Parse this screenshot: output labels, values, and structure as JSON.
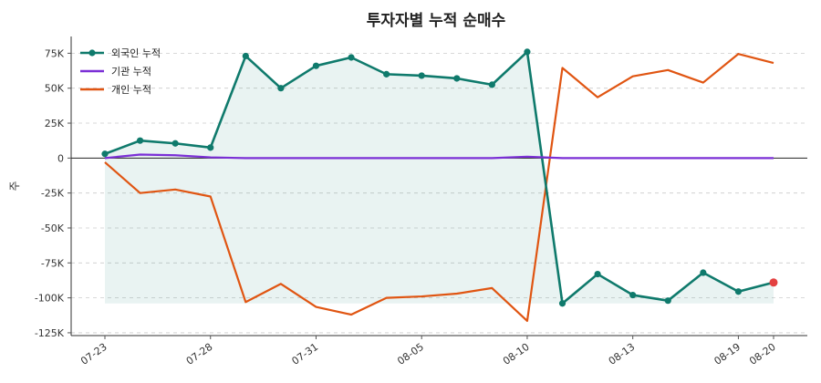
{
  "chart_data": {
    "type": "line",
    "title": "투자자별 누적 순매수",
    "ylabel": "주",
    "xlabel": "",
    "ylim": [
      -127000,
      87000
    ],
    "yticks": [
      75000,
      50000,
      25000,
      0,
      -25000,
      -50000,
      -75000,
      -100000,
      -125000
    ],
    "ytick_labels": [
      "75K",
      "50K",
      "25K",
      "0",
      "-25K",
      "-50K",
      "-75K",
      "-100K",
      "-125K"
    ],
    "grid": true,
    "legend_position": "top-left",
    "dates": [
      "07-23",
      "07-24",
      "07-25",
      "07-28",
      "07-29",
      "07-30",
      "07-31",
      "08-01",
      "08-04",
      "08-05",
      "08-06",
      "08-07",
      "08-10",
      "08-11",
      "08-12",
      "08-13",
      "08-14",
      "08-18",
      "08-19",
      "08-20"
    ],
    "xticks": [
      "07-23",
      "07-28",
      "07-31",
      "08-05",
      "08-10",
      "08-13",
      "08-19",
      "08-20"
    ],
    "series": [
      {
        "name": "외국인 누적",
        "color": "#0f7a6c",
        "markers": true,
        "fill": true,
        "values": [
          3000,
          12500,
          10500,
          7500,
          73000,
          50000,
          66000,
          72000,
          60000,
          59000,
          57000,
          52500,
          76000,
          -104000,
          -83000,
          -98000,
          -102000,
          -82000,
          -95500,
          -89000
        ]
      },
      {
        "name": "기관 누적",
        "color": "#7b2fd6",
        "markers": false,
        "fill": false,
        "values": [
          0,
          2500,
          2000,
          500,
          0,
          0,
          0,
          0,
          0,
          0,
          0,
          0,
          1000,
          0,
          0,
          0,
          0,
          0,
          0,
          0
        ]
      },
      {
        "name": "개인 누적",
        "color": "#e05512",
        "markers": false,
        "fill": false,
        "values": [
          -3000,
          -25000,
          -22500,
          -27500,
          -103000,
          -90000,
          -106500,
          -112000,
          -100000,
          -99000,
          -97000,
          -93000,
          -116500,
          64500,
          43500,
          58500,
          63000,
          54000,
          74500,
          68000
        ]
      }
    ],
    "highlight_color": "#e34040"
  }
}
